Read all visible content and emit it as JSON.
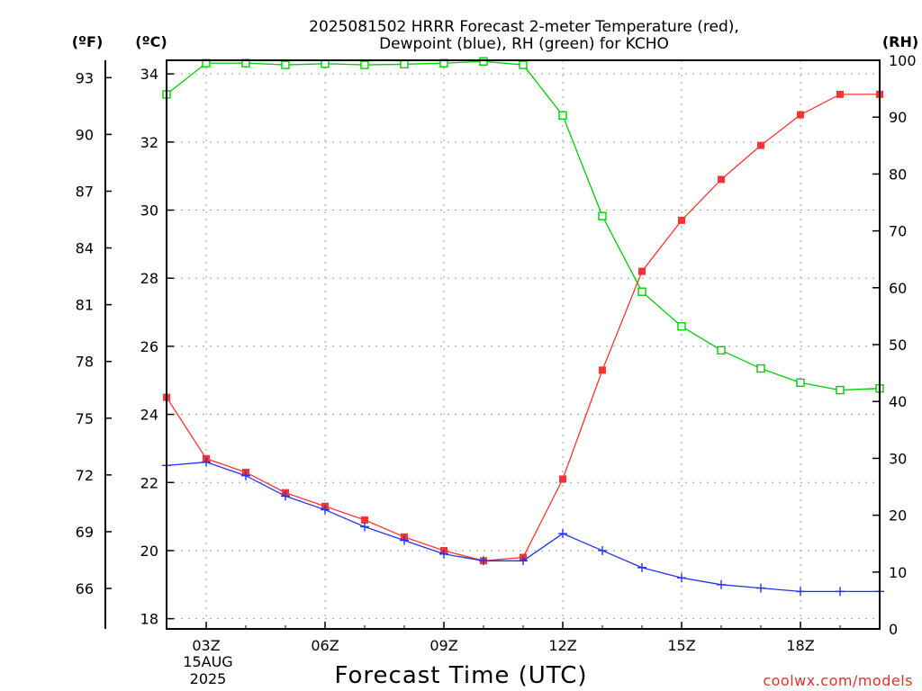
{
  "chart_data": {
    "type": "line",
    "title": "2025081502 HRRR Forecast 2-meter Temperature (red),",
    "subtitle": "Dewpoint (blue), RH (green) for KCHO",
    "xlabel": "Forecast Time (UTC)",
    "unit_f": "(ºF)",
    "unit_c": "(ºC)",
    "unit_rh": "(RH)",
    "credit": "coolwx.com/models",
    "date_line1": "15AUG",
    "date_line2": "2025",
    "x": [
      2,
      3,
      4,
      5,
      6,
      7,
      8,
      9,
      10,
      11,
      12,
      13,
      14,
      15,
      16,
      17,
      18,
      19,
      20
    ],
    "xlim": [
      2,
      20
    ],
    "x_ticks": [
      {
        "value": 3,
        "label": "03Z"
      },
      {
        "value": 6,
        "label": "06Z"
      },
      {
        "value": 9,
        "label": "09Z"
      },
      {
        "value": 12,
        "label": "12Z"
      },
      {
        "value": 15,
        "label": "15Z"
      },
      {
        "value": 18,
        "label": "18Z"
      }
    ],
    "ylim_c": [
      17.7,
      34.4
    ],
    "yticks_c": [
      "18",
      "20",
      "22",
      "24",
      "26",
      "28",
      "30",
      "32",
      "34"
    ],
    "yticks_f": [
      "66",
      "69",
      "72",
      "75",
      "78",
      "81",
      "84",
      "87",
      "90",
      "93"
    ],
    "ylim_rh": [
      0,
      100
    ],
    "yticks_rh": [
      "0",
      "10",
      "20",
      "30",
      "40",
      "50",
      "60",
      "70",
      "80",
      "90",
      "100"
    ],
    "grid": true,
    "series": [
      {
        "name": "Temperature",
        "axis": "c",
        "color": "#ff3333",
        "marker": "filled-square",
        "values": [
          24.5,
          22.7,
          22.3,
          21.7,
          21.3,
          20.9,
          20.4,
          20.0,
          19.7,
          19.8,
          22.1,
          25.3,
          28.2,
          29.7,
          30.9,
          31.9,
          32.8,
          33.4,
          33.4
        ]
      },
      {
        "name": "Dewpoint",
        "axis": "c",
        "color": "#2233ee",
        "marker": "plus",
        "values": [
          22.5,
          22.6,
          22.2,
          21.6,
          21.2,
          20.7,
          20.3,
          19.9,
          19.7,
          19.7,
          20.5,
          20.0,
          19.5,
          19.2,
          19.0,
          18.9,
          18.8,
          18.8,
          18.8
        ]
      },
      {
        "name": "RH",
        "axis": "rh",
        "color": "#00cc00",
        "marker": "open-square",
        "values": [
          94,
          99.5,
          99.5,
          99.2,
          99.4,
          99.2,
          99.3,
          99.5,
          99.8,
          99.2,
          90.3,
          72.6,
          59.3,
          53.2,
          49.0,
          45.8,
          43.3,
          42.0,
          42.3
        ]
      }
    ]
  }
}
